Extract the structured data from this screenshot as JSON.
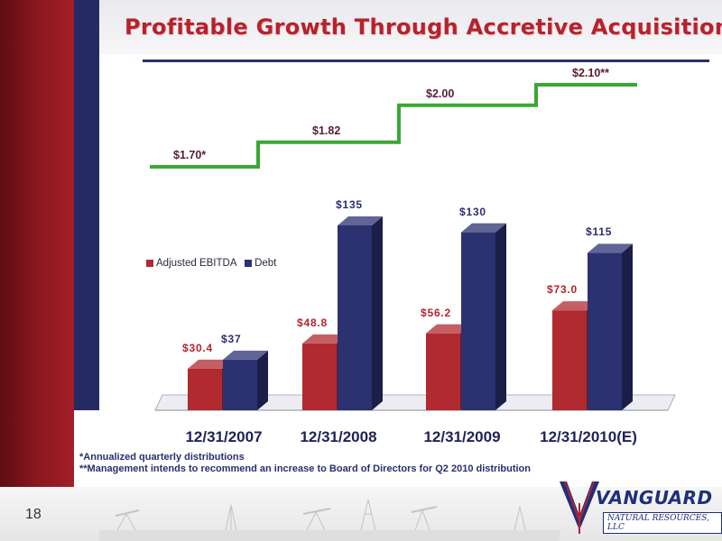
{
  "slide": {
    "title": "Profitable Growth Through Accretive Acquisitions",
    "page_number": "18",
    "footnotes": [
      "*Annualized quarterly distributions",
      "**Management intends to recommend an increase to Board of Directors for Q2 2010 distribution"
    ],
    "logo": {
      "name": "VANGUARD",
      "subtitle": "NATURAL RESOURCES, LLC"
    }
  },
  "colors": {
    "ebitda": "#b02a30",
    "debt": "#2c3171",
    "distribution_line": "#3aa832",
    "title": "#b4232e"
  },
  "distributions": {
    "labels": [
      "$1.70*",
      "$1.82",
      "$2.00",
      "$2.10**"
    ],
    "values": [
      1.7,
      1.82,
      2.0,
      2.1
    ]
  },
  "chart_data": {
    "type": "bar",
    "categories": [
      "12/31/2007",
      "12/31/2008",
      "12/31/2009",
      "12/31/2010(E)"
    ],
    "series": [
      {
        "name": "Adjusted EBITDA",
        "values": [
          30.4,
          48.8,
          56.2,
          73.0
        ],
        "labels": [
          "$30.4",
          "$48.8",
          "$56.2",
          "$73.0"
        ]
      },
      {
        "name": "Debt",
        "values": [
          37,
          135,
          130,
          115
        ],
        "labels": [
          "$37",
          "$135",
          "$130",
          "$115"
        ]
      }
    ],
    "title": "",
    "xlabel": "",
    "ylabel": "",
    "ylim": [
      0,
      135
    ],
    "legend": "left",
    "grid": false,
    "style": "3d-column"
  }
}
